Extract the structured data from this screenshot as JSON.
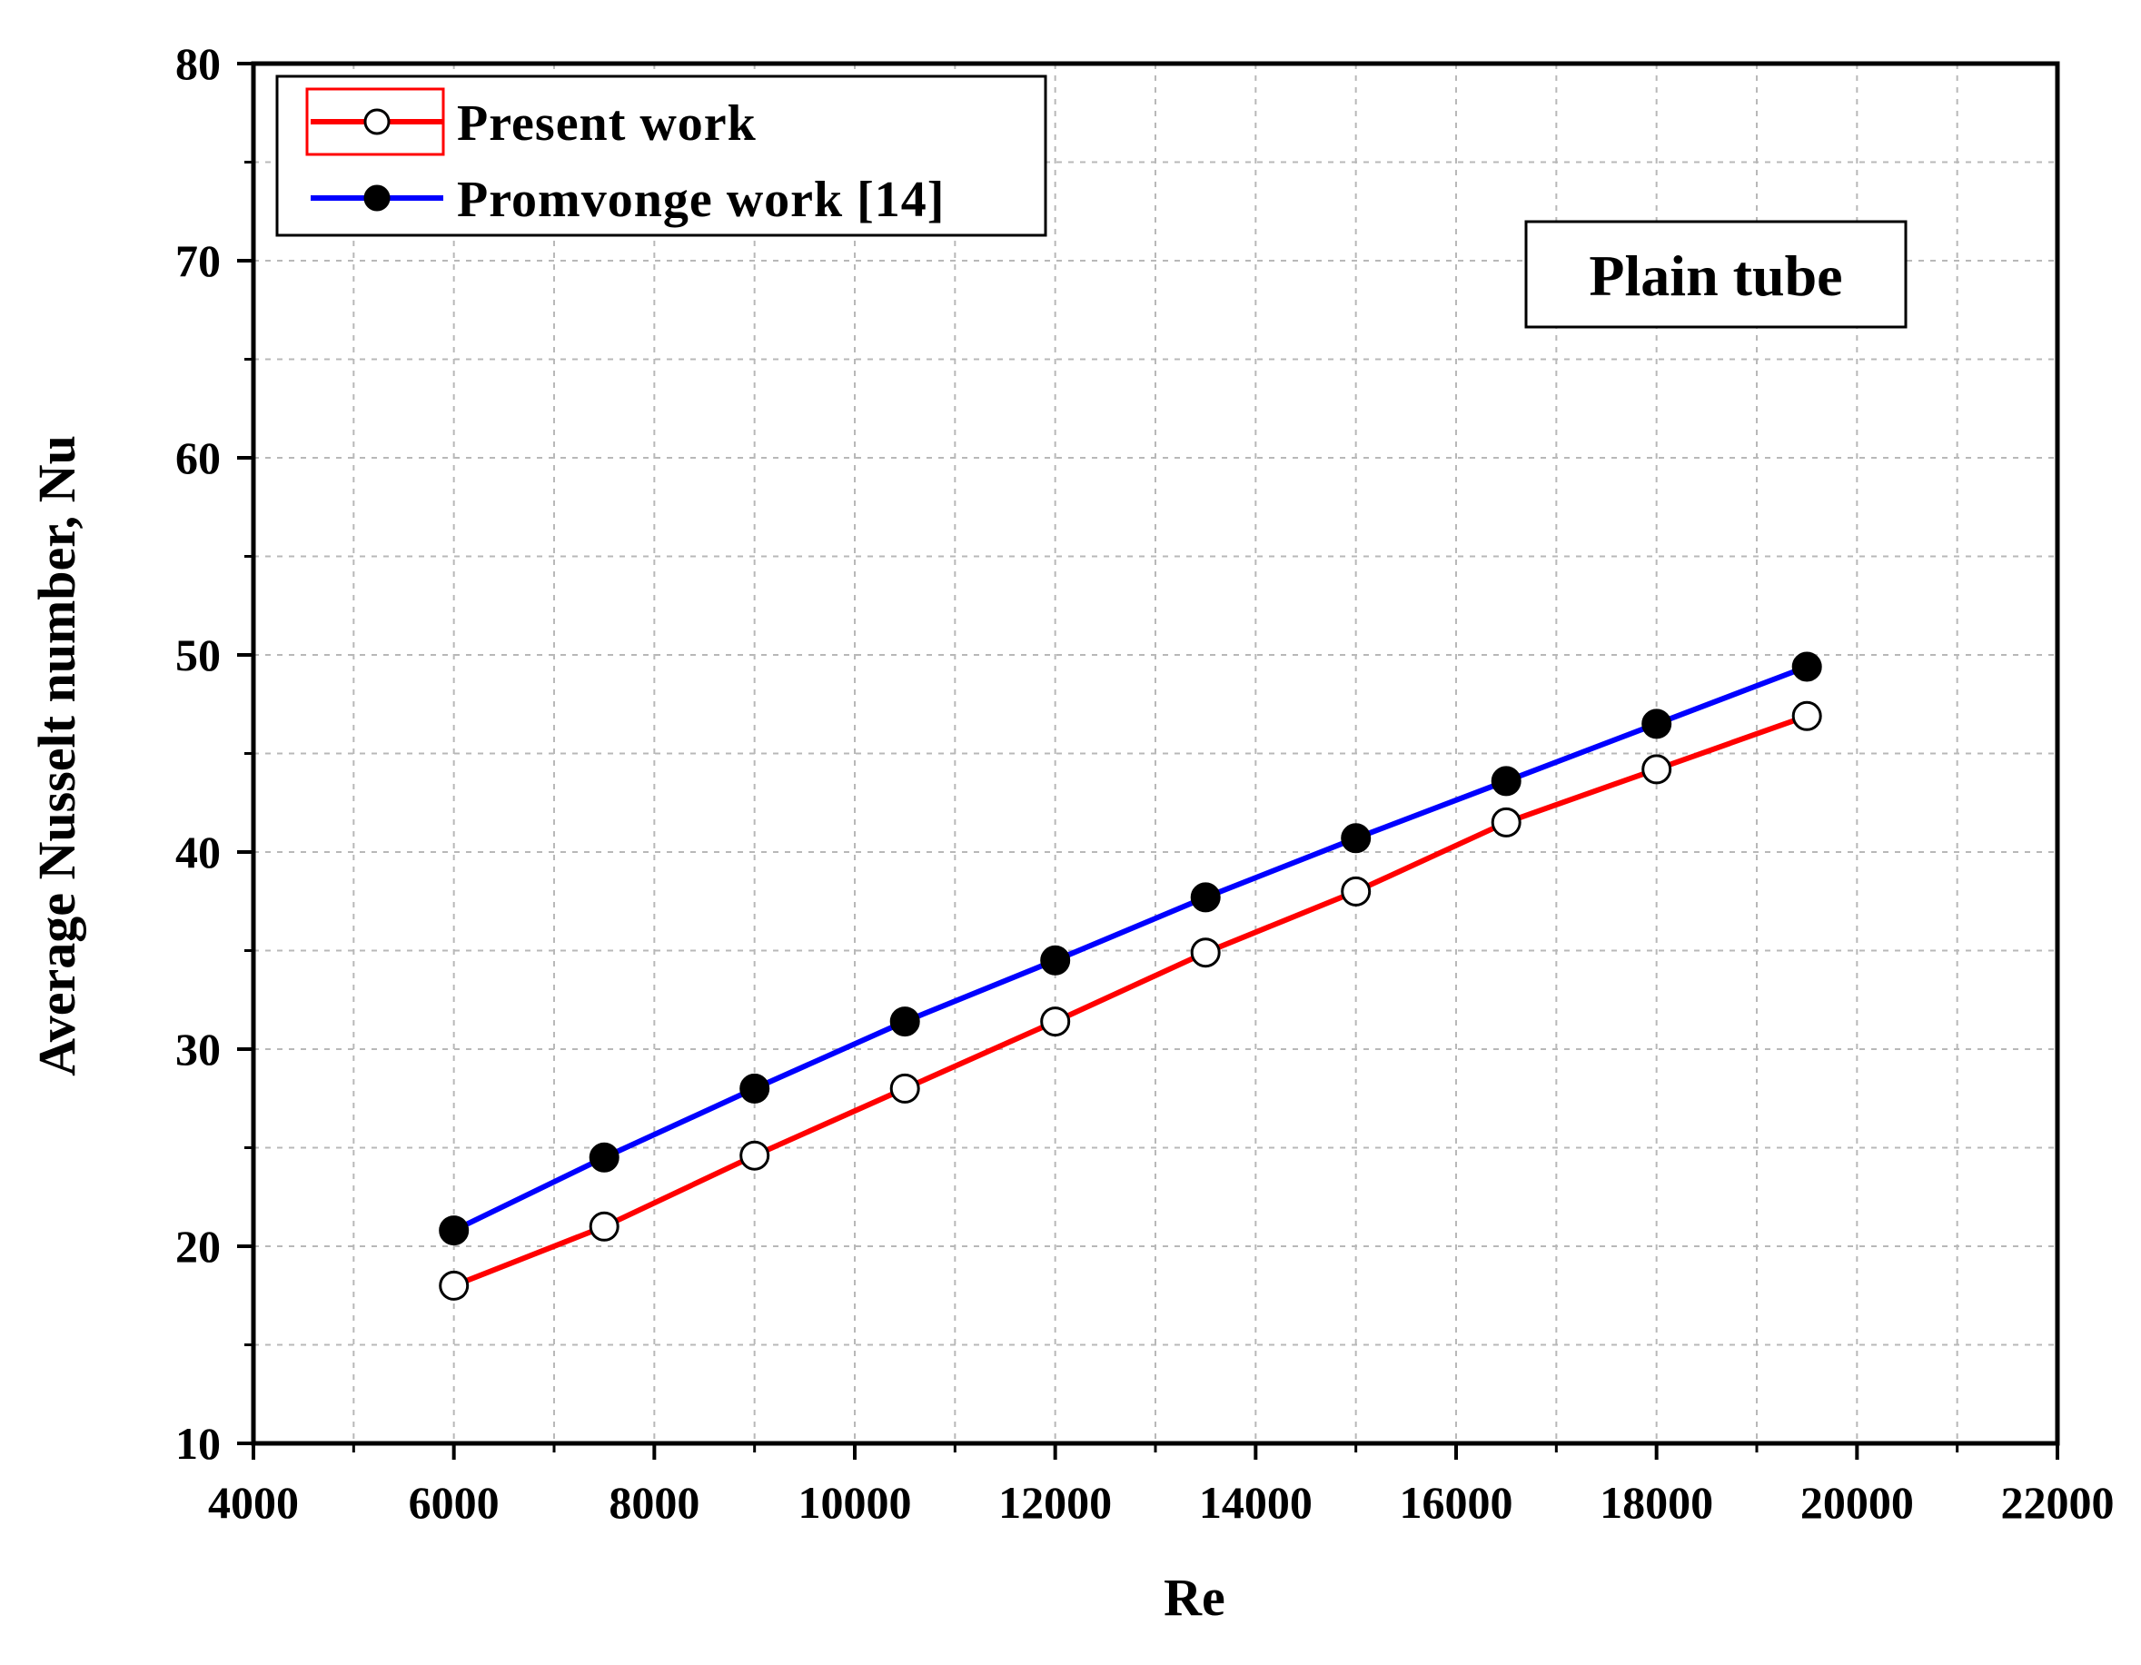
{
  "chart_data": {
    "type": "line",
    "xlabel": "Re",
    "ylabel": "Average Nusselt number, Nu",
    "xlim": [
      4000,
      22000
    ],
    "ylim": [
      10,
      80
    ],
    "xticks": [
      4000,
      6000,
      8000,
      10000,
      12000,
      14000,
      16000,
      18000,
      20000,
      22000
    ],
    "xtick_labels": [
      "4000",
      "6000",
      "8000",
      "10000",
      "12000",
      "14000",
      "16000",
      "18000",
      "20000",
      "22000"
    ],
    "yticks": [
      10,
      20,
      30,
      40,
      50,
      60,
      70,
      80
    ],
    "ytick_labels": [
      "10",
      "20",
      "30",
      "40",
      "50",
      "60",
      "70",
      "80"
    ],
    "grid": true,
    "legend_position": "top-left",
    "annotation": "Plain tube",
    "series": [
      {
        "name": "Present work",
        "color": "#ff0000",
        "marker": "open-circle",
        "x": [
          6000,
          7500,
          9000,
          10500,
          12000,
          13500,
          15000,
          16500,
          18000,
          19500
        ],
        "y": [
          18.0,
          21.0,
          24.6,
          28.0,
          31.4,
          34.9,
          38.0,
          41.5,
          44.2,
          46.9
        ]
      },
      {
        "name": "Promvonge work [14]",
        "color": "#0000ff",
        "marker": "filled-circle",
        "x": [
          6000,
          7500,
          9000,
          10500,
          12000,
          13500,
          15000,
          16500,
          18000,
          19500
        ],
        "y": [
          20.8,
          24.5,
          28.0,
          31.4,
          34.5,
          37.7,
          40.7,
          43.6,
          46.5,
          49.4
        ]
      }
    ]
  }
}
